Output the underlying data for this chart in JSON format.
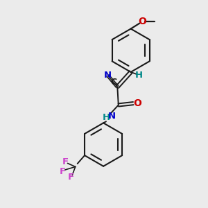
{
  "background_color": "#ebebeb",
  "bond_color": "#1a1a1a",
  "atom_colors": {
    "O": "#cc0000",
    "N": "#0000cc",
    "F": "#cc44cc",
    "H_teal": "#008888",
    "C": "#1a1a1a"
  },
  "figsize": [
    3.0,
    3.0
  ],
  "dpi": 100
}
